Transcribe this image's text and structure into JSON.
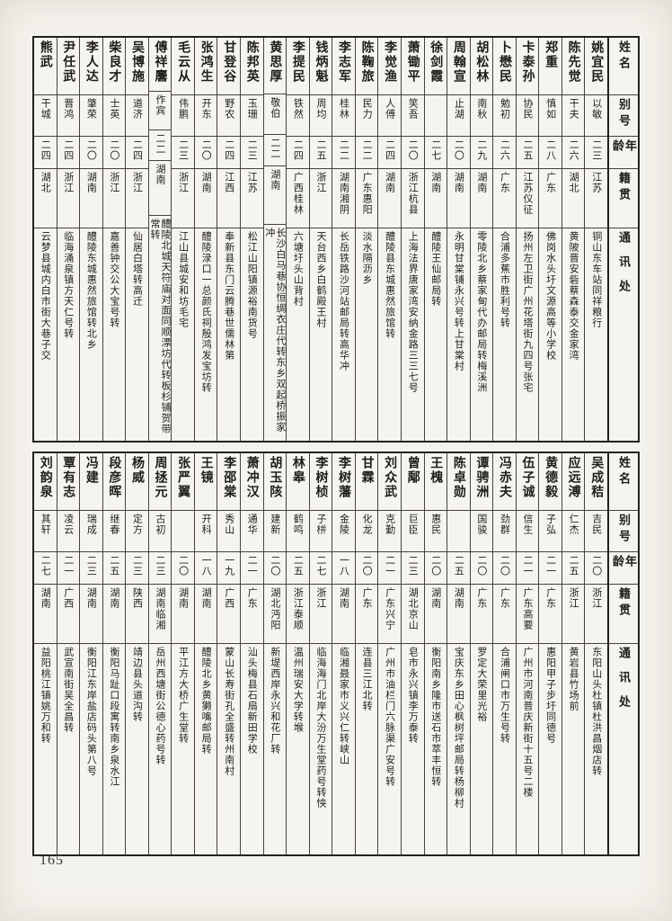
{
  "page_number": "165",
  "column_headers": [
    "姓名",
    "别号",
    "年龄",
    "籍贯",
    "通讯处"
  ],
  "reading_order": "right-to-left",
  "tables": [
    {
      "position": "top",
      "entries": [
        {
          "name": "姚宜民",
          "alias": "以敏",
          "age": "二三",
          "native": "江苏",
          "addr": "铜山东车站同祥粮行"
        },
        {
          "name": "陈先觉",
          "alias": "干夫",
          "age": "二六",
          "native": "湖北",
          "addr": "黄陂晋安砦蔡森泰交金家湾"
        },
        {
          "name": "郑重",
          "alias": "慎如",
          "age": "二八",
          "native": "广东",
          "addr": "佛岗水头圩文源高等小学校"
        },
        {
          "name": "卡泰孙",
          "alias": "协民",
          "age": "二五",
          "native": "江苏仪征",
          "addr": "扬州左卫街广州花塔街九四号张宅"
        },
        {
          "name": "卜懋民",
          "alias": "勉初",
          "age": "二六",
          "native": "广东",
          "addr": "合浦多蕉市胜利号转"
        },
        {
          "name": "胡松林",
          "alias": "南秋",
          "age": "二九",
          "native": "湖南",
          "addr": "零陵北乡蔡家甸代办邮局转梅溪洲"
        },
        {
          "name": "周翰宣",
          "alias": "止湖",
          "age": "二〇",
          "native": "湖南",
          "addr": "永明甘棠铺永兴号转上甘棠村"
        },
        {
          "name": "徐剑霞",
          "alias": "",
          "age": "二七",
          "native": "湖南",
          "addr": "醴陵王仙邮局转"
        },
        {
          "name": "萧锄平",
          "alias": "笑吾",
          "age": "二〇",
          "native": "浙江杭县",
          "addr": "上海法界唐家湾安纳金路三三七号"
        },
        {
          "name": "李觉渔",
          "alias": "人傅",
          "age": "二四",
          "native": "湖南",
          "addr": "醴陵县东城惠然旅馆转"
        },
        {
          "name": "陈鞠旅",
          "alias": "民力",
          "age": "二二",
          "native": "广东惠阳",
          "addr": "淡水隔沥乡"
        },
        {
          "name": "李志军",
          "alias": "桂林",
          "age": "二二",
          "native": "湖南湘阴",
          "addr": "长岳铁路沙河站邮局转高华冲"
        },
        {
          "name": "钱炳魁",
          "alias": "周均",
          "age": "二五",
          "native": "浙江",
          "addr": "天台西乡白鹤殿王村"
        },
        {
          "name": "李提民",
          "alias": "铁然",
          "age": "二四",
          "native": "广西桂林",
          "addr": "六塘圩头山背村"
        },
        {
          "name": "黄思厚",
          "alias": "敬伯",
          "age": "二二",
          "native": "湖南",
          "addr": "长沙白马巷协恒绸衣庄代转东乡双起桥振家冲"
        },
        {
          "name": "陈邦英",
          "alias": "玉珊",
          "age": "二三",
          "native": "江苏",
          "addr": "松江山阳镇源裕南货号"
        },
        {
          "name": "甘登谷",
          "alias": "野农",
          "age": "二四",
          "native": "江西",
          "addr": "奉新县东门云腾巷世儒林第"
        },
        {
          "name": "张鸿生",
          "alias": "开东",
          "age": "二〇",
          "native": "湖南",
          "addr": "醴陵渌口一总颜氏祠殷鸿发宝坊转"
        },
        {
          "name": "毛云从",
          "alias": "伟鹏",
          "age": "二三",
          "native": "浙江",
          "addr": "江山县城安和坊毛宅"
        },
        {
          "name": "傅祥麐",
          "alias": "作宾",
          "age": "二二",
          "native": "湖南",
          "addr": "醴陵北城天符庙对面同顺漂坊代转板杉铺贺带常转"
        },
        {
          "name": "吴博施",
          "alias": "道济",
          "age": "二四",
          "native": "浙江",
          "addr": "仙居白塔转高迁"
        },
        {
          "name": "柴良才",
          "alias": "士英",
          "age": "二〇",
          "native": "浙江",
          "addr": "嘉善钟交公大宝号转"
        },
        {
          "name": "李人达",
          "alias": "肇荣",
          "age": "二〇",
          "native": "湖南",
          "addr": "醴陵东城惠然旅馆转北乡"
        },
        {
          "name": "尹任武",
          "alias": "晋鸿",
          "age": "二四",
          "native": "浙江",
          "addr": "临海涌泉镇方天仁号转"
        },
        {
          "name": "熊武",
          "alias": "干城",
          "age": "二四",
          "native": "湖北",
          "addr": "云梦县城内白市街大巷子交"
        }
      ]
    },
    {
      "position": "bottom",
      "entries": [
        {
          "name": "吴成秸",
          "alias": "吉民",
          "age": "二〇",
          "native": "浙江",
          "addr": "东阳山头杜镇杜洪昌烟店转"
        },
        {
          "name": "应远溥",
          "alias": "仁杰",
          "age": "二五",
          "native": "浙江",
          "addr": "黄岩县竹场前"
        },
        {
          "name": "黄德毅",
          "alias": "子弘",
          "age": "二一",
          "native": "广东",
          "addr": "惠阳甲子步圩同德号"
        },
        {
          "name": "伍子诚",
          "alias": "信生",
          "age": "二一",
          "native": "广东高要",
          "addr": "广州市河南普庆新街十五号二楼"
        },
        {
          "name": "冯赤夫",
          "alias": "劲群",
          "age": "二〇",
          "native": "广东",
          "addr": "合浦闸口市万生号转"
        },
        {
          "name": "谭骋洲",
          "alias": "国骏",
          "age": "二〇",
          "native": "广东",
          "addr": "罗定大荣里光裕"
        },
        {
          "name": "陈卓勋",
          "alias": "",
          "age": "二五",
          "native": "湖南",
          "addr": "宝庆东乡田心枫树坪邮局转杨柳村"
        },
        {
          "name": "王槐",
          "alias": "惠民",
          "age": "二〇",
          "native": "湖南",
          "addr": "衡阳南乡隆市送石市萃丰恒转"
        },
        {
          "name": "曾鄅",
          "alias": "巨臣",
          "age": "二三",
          "native": "湖北京山",
          "addr": "皂市永兴镇李万泰转"
        },
        {
          "name": "刘众武",
          "alias": "克勤",
          "age": "二一",
          "native": "广东兴宁",
          "addr": "广州市油栏门六脉渠广安号转"
        },
        {
          "name": "甘霖",
          "alias": "化龙",
          "age": "二〇",
          "native": "广东",
          "addr": "连县三江北转"
        },
        {
          "name": "李树藩",
          "alias": "金陵",
          "age": "一八",
          "native": "湖南",
          "addr": "临湘聂家市义兴仁转峡山"
        },
        {
          "name": "李树桢",
          "alias": "子栟",
          "age": "二七",
          "native": "浙江",
          "addr": "临海海门北岸大汾万生堂药号转怏"
        },
        {
          "name": "林皋",
          "alias": "鹤鸣",
          "age": "二五",
          "native": "浙江泰顺",
          "addr": "温州瑞安大学转堠"
        },
        {
          "name": "胡玉陔",
          "alias": "建新",
          "age": "二〇",
          "native": "湖北沔阳",
          "addr": "新堤西岸永兴和花厂转"
        },
        {
          "name": "萧冲汉",
          "alias": "通华",
          "age": "二一",
          "native": "广东",
          "addr": "汕头梅县石扇新田学校"
        },
        {
          "name": "李邵棠",
          "alias": "秀山",
          "age": "一九",
          "native": "广西",
          "addr": "蒙山长寿街孔全盛转州南村"
        },
        {
          "name": "王镜",
          "alias": "开科",
          "age": "一八",
          "native": "湖南",
          "addr": "醴陵北乡黄獭嘴邮局转"
        },
        {
          "name": "张严翼",
          "alias": "",
          "age": "二〇",
          "native": "湖南",
          "addr": "平江方大桥广生堂转"
        },
        {
          "name": "周拯元",
          "alias": "古初",
          "age": "二三",
          "native": "湖南临湘",
          "addr": "岳州西塘街公德心药号转"
        },
        {
          "name": "杨威",
          "alias": "定方",
          "age": "二三",
          "native": "陕西",
          "addr": "靖边县头道沟转"
        },
        {
          "name": "段彦晖",
          "alias": "继春",
          "age": "二五",
          "native": "湖南",
          "addr": "衡阳马趾口段寓转南乡泉水江"
        },
        {
          "name": "冯建",
          "alias": "瑞成",
          "age": "二三",
          "native": "湖南",
          "addr": "衡阳江东岸盐店码头第八号"
        },
        {
          "name": "覃有志",
          "alias": "凌云",
          "age": "二一",
          "native": "广西",
          "addr": "武宣南街吴全昌转"
        },
        {
          "name": "刘韵泉",
          "alias": "其轩",
          "age": "二七",
          "native": "湖南",
          "addr": "益阳桃江镇姚万和转"
        }
      ]
    }
  ]
}
